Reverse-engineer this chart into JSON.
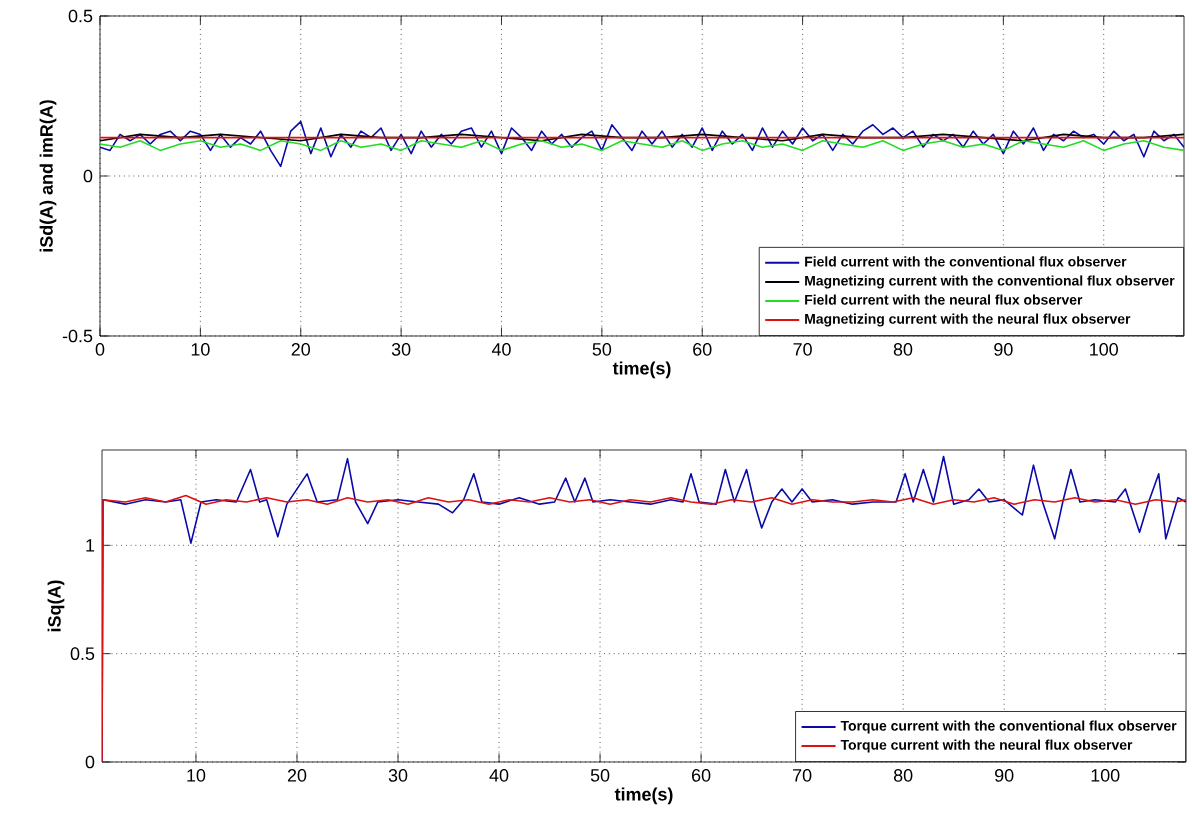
{
  "chart_data": [
    {
      "type": "line",
      "xlabel": "time(s)",
      "ylabel": "iSd(A) and imR(A)",
      "xlim": [
        0,
        108
      ],
      "ylim": [
        -0.5,
        0.5
      ],
      "xticks": [
        0,
        10,
        20,
        30,
        40,
        50,
        60,
        70,
        80,
        90,
        100
      ],
      "yticks": [
        -0.5,
        0,
        0.5
      ],
      "grid": true,
      "legend": "bottom right",
      "series": [
        {
          "name": "Field current with the conventional flux observer",
          "color": "#0a0aa8",
          "x": [
            0,
            1,
            2,
            3,
            4,
            5,
            6,
            7,
            8,
            9,
            10,
            11,
            12,
            13,
            14,
            15,
            16,
            17,
            18,
            19,
            20,
            21,
            22,
            23,
            24,
            25,
            26,
            27,
            28,
            29,
            30,
            31,
            32,
            33,
            34,
            35,
            36,
            37,
            38,
            39,
            40,
            41,
            42,
            43,
            44,
            45,
            46,
            47,
            48,
            49,
            50,
            51,
            52,
            53,
            54,
            55,
            56,
            57,
            58,
            59,
            60,
            61,
            62,
            63,
            64,
            65,
            66,
            67,
            68,
            69,
            70,
            71,
            72,
            73,
            74,
            75,
            76,
            77,
            78,
            79,
            80,
            81,
            82,
            83,
            84,
            85,
            86,
            87,
            88,
            89,
            90,
            91,
            92,
            93,
            94,
            95,
            96,
            97,
            98,
            99,
            100,
            101,
            102,
            103,
            104,
            105,
            106,
            107,
            108
          ],
          "values": [
            0.09,
            0.08,
            0.13,
            0.11,
            0.13,
            0.1,
            0.13,
            0.14,
            0.11,
            0.14,
            0.13,
            0.08,
            0.13,
            0.09,
            0.12,
            0.1,
            0.14,
            0.08,
            0.03,
            0.14,
            0.17,
            0.07,
            0.15,
            0.06,
            0.13,
            0.09,
            0.14,
            0.12,
            0.15,
            0.08,
            0.13,
            0.07,
            0.14,
            0.09,
            0.13,
            0.1,
            0.14,
            0.15,
            0.09,
            0.14,
            0.07,
            0.15,
            0.12,
            0.08,
            0.14,
            0.1,
            0.13,
            0.09,
            0.12,
            0.14,
            0.08,
            0.16,
            0.12,
            0.08,
            0.14,
            0.1,
            0.14,
            0.09,
            0.13,
            0.09,
            0.15,
            0.08,
            0.14,
            0.1,
            0.13,
            0.08,
            0.15,
            0.09,
            0.14,
            0.1,
            0.15,
            0.11,
            0.13,
            0.08,
            0.13,
            0.1,
            0.14,
            0.16,
            0.13,
            0.15,
            0.12,
            0.14,
            0.09,
            0.13,
            0.11,
            0.13,
            0.09,
            0.14,
            0.1,
            0.13,
            0.07,
            0.14,
            0.1,
            0.15,
            0.08,
            0.13,
            0.11,
            0.14,
            0.12,
            0.13,
            0.1,
            0.14,
            0.11,
            0.13,
            0.06,
            0.14,
            0.11,
            0.13,
            0.09
          ]
        },
        {
          "name": "Magnetizing current with the conventional flux observer",
          "color": "#000000",
          "x": [
            0,
            4,
            8,
            12,
            16,
            20,
            24,
            28,
            32,
            36,
            40,
            44,
            48,
            52,
            56,
            60,
            64,
            68,
            72,
            76,
            80,
            84,
            88,
            92,
            96,
            100,
            104,
            108
          ],
          "values": [
            0.11,
            0.13,
            0.12,
            0.13,
            0.12,
            0.11,
            0.13,
            0.12,
            0.12,
            0.13,
            0.12,
            0.11,
            0.13,
            0.12,
            0.12,
            0.13,
            0.12,
            0.11,
            0.13,
            0.12,
            0.12,
            0.13,
            0.12,
            0.11,
            0.13,
            0.12,
            0.12,
            0.13
          ]
        },
        {
          "name": "Field current with the neural flux observer",
          "color": "#22dd22",
          "x": [
            0,
            2,
            4,
            6,
            8,
            10,
            12,
            14,
            16,
            18,
            20,
            22,
            24,
            26,
            28,
            30,
            32,
            34,
            36,
            38,
            40,
            42,
            44,
            46,
            48,
            50,
            52,
            54,
            56,
            58,
            60,
            62,
            64,
            66,
            68,
            70,
            72,
            74,
            76,
            78,
            80,
            82,
            84,
            86,
            88,
            90,
            92,
            94,
            96,
            98,
            100,
            102,
            104,
            106,
            108
          ],
          "values": [
            0.1,
            0.09,
            0.11,
            0.08,
            0.1,
            0.11,
            0.09,
            0.1,
            0.08,
            0.11,
            0.1,
            0.08,
            0.11,
            0.09,
            0.1,
            0.08,
            0.11,
            0.1,
            0.09,
            0.11,
            0.08,
            0.1,
            0.11,
            0.09,
            0.1,
            0.08,
            0.11,
            0.1,
            0.09,
            0.11,
            0.08,
            0.1,
            0.11,
            0.09,
            0.1,
            0.08,
            0.11,
            0.1,
            0.09,
            0.11,
            0.08,
            0.1,
            0.11,
            0.09,
            0.1,
            0.08,
            0.11,
            0.1,
            0.09,
            0.11,
            0.08,
            0.1,
            0.11,
            0.09,
            0.08
          ]
        },
        {
          "name": "Magnetizing current with the neural flux observer",
          "color": "#dd1111",
          "x": [
            0,
            108
          ],
          "values": [
            0.12,
            0.12
          ]
        }
      ]
    },
    {
      "type": "line",
      "xlabel": "time(s)",
      "ylabel": "iSq(A)",
      "xlim": [
        0.7,
        108
      ],
      "ylim": [
        0,
        1.44
      ],
      "xticks": [
        10,
        20,
        30,
        40,
        50,
        60,
        70,
        80,
        90,
        100
      ],
      "yticks": [
        0,
        0.5,
        1
      ],
      "grid": true,
      "legend": "bottom right",
      "series": [
        {
          "name": "Torque current with the conventional flux observer",
          "color": "#0a0aa8",
          "x": [
            0.7,
            0.8,
            3,
            5,
            7,
            8.5,
            9.5,
            10.5,
            12,
            14,
            15.4,
            16.3,
            17,
            18.1,
            19,
            21,
            22,
            24,
            25,
            25.8,
            27,
            28,
            30,
            32,
            34,
            35.4,
            36.5,
            37.5,
            38.3,
            40,
            42,
            44,
            45.5,
            46.6,
            47.5,
            48.5,
            49.3,
            51,
            53,
            55,
            57,
            58.2,
            59,
            59.8,
            61.5,
            62.4,
            63.3,
            64.5,
            65.3,
            66,
            67,
            68,
            69,
            70,
            71,
            73,
            75,
            77,
            79.3,
            80.2,
            81,
            82,
            83,
            84,
            85,
            86.5,
            87.5,
            88.5,
            90,
            91.8,
            92.9,
            93.8,
            95,
            95.8,
            96.6,
            97.5,
            99,
            101,
            102,
            103.4,
            104.3,
            105.3,
            106,
            107.2,
            108
          ],
          "values": [
            0,
            1.21,
            1.19,
            1.21,
            1.2,
            1.21,
            1.01,
            1.2,
            1.21,
            1.2,
            1.35,
            1.2,
            1.21,
            1.04,
            1.19,
            1.33,
            1.2,
            1.21,
            1.4,
            1.2,
            1.1,
            1.2,
            1.21,
            1.2,
            1.19,
            1.15,
            1.21,
            1.33,
            1.2,
            1.19,
            1.22,
            1.19,
            1.2,
            1.31,
            1.2,
            1.31,
            1.2,
            1.21,
            1.2,
            1.19,
            1.21,
            1.2,
            1.33,
            1.2,
            1.19,
            1.35,
            1.2,
            1.35,
            1.19,
            1.08,
            1.2,
            1.26,
            1.2,
            1.26,
            1.2,
            1.21,
            1.19,
            1.2,
            1.2,
            1.33,
            1.2,
            1.35,
            1.2,
            1.41,
            1.19,
            1.21,
            1.26,
            1.2,
            1.21,
            1.14,
            1.37,
            1.2,
            1.03,
            1.2,
            1.35,
            1.2,
            1.21,
            1.2,
            1.26,
            1.06,
            1.2,
            1.33,
            1.03,
            1.22,
            1.2
          ]
        },
        {
          "name": "Torque current with the neural flux observer",
          "color": "#dd1111",
          "x": [
            0.7,
            0.8,
            3,
            5,
            7,
            9,
            11,
            13,
            15,
            17,
            19,
            21,
            23,
            25,
            27,
            29,
            31,
            33,
            35,
            37,
            39,
            41,
            43,
            45,
            47,
            49,
            51,
            53,
            55,
            57,
            59,
            61,
            63,
            65,
            67,
            69,
            71,
            73,
            75,
            77,
            79,
            81,
            83,
            85,
            87,
            89,
            91,
            93,
            95,
            97,
            99,
            101,
            103,
            105,
            107,
            108
          ],
          "values": [
            0,
            1.21,
            1.2,
            1.22,
            1.2,
            1.23,
            1.19,
            1.21,
            1.2,
            1.22,
            1.2,
            1.21,
            1.19,
            1.22,
            1.2,
            1.21,
            1.19,
            1.22,
            1.2,
            1.21,
            1.19,
            1.21,
            1.2,
            1.22,
            1.2,
            1.21,
            1.19,
            1.21,
            1.2,
            1.22,
            1.2,
            1.19,
            1.21,
            1.2,
            1.22,
            1.19,
            1.21,
            1.2,
            1.2,
            1.21,
            1.2,
            1.22,
            1.19,
            1.21,
            1.2,
            1.22,
            1.19,
            1.21,
            1.2,
            1.22,
            1.2,
            1.21,
            1.19,
            1.21,
            1.2,
            1.21
          ]
        }
      ]
    }
  ]
}
